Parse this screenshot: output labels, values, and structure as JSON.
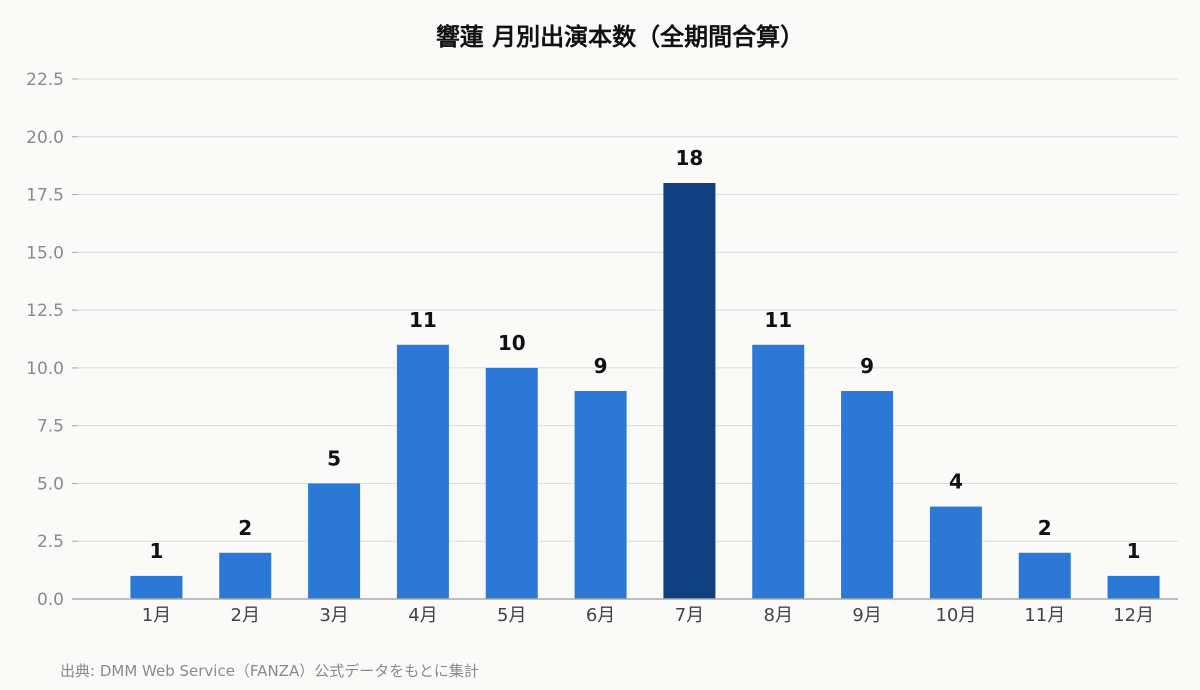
{
  "chart_data": {
    "type": "bar",
    "title": "響蓮 月別出演本数（全期間合算）",
    "categories": [
      "1月",
      "2月",
      "3月",
      "4月",
      "5月",
      "6月",
      "7月",
      "8月",
      "9月",
      "10月",
      "11月",
      "12月"
    ],
    "values": [
      1,
      2,
      5,
      11,
      10,
      9,
      18,
      11,
      9,
      4,
      2,
      1
    ],
    "data_labels": [
      "1",
      "2",
      "5",
      "11",
      "10",
      "9",
      "18",
      "11",
      "9",
      "4",
      "2",
      "1"
    ],
    "ylim": [
      0,
      22.5
    ],
    "yticks": [
      0,
      2.5,
      5,
      7.5,
      10,
      12.5,
      15,
      17.5,
      20,
      22.5
    ],
    "ytick_labels": [
      "0.0",
      "2.5",
      "5.0",
      "7.5",
      "10.0",
      "12.5",
      "15.0",
      "17.5",
      "20.0",
      "22.5"
    ],
    "xlabel": "",
    "ylabel": "",
    "grid": true,
    "highlight_index": 6,
    "colors": {
      "bar": "#2b78d6",
      "highlight": "#0f3f80",
      "grid": "#dddddd",
      "axis": "#aaaaaa",
      "background": "#fafaf8"
    }
  },
  "source_note": "出典: DMM Web Service（FANZA）公式データをもとに集計"
}
